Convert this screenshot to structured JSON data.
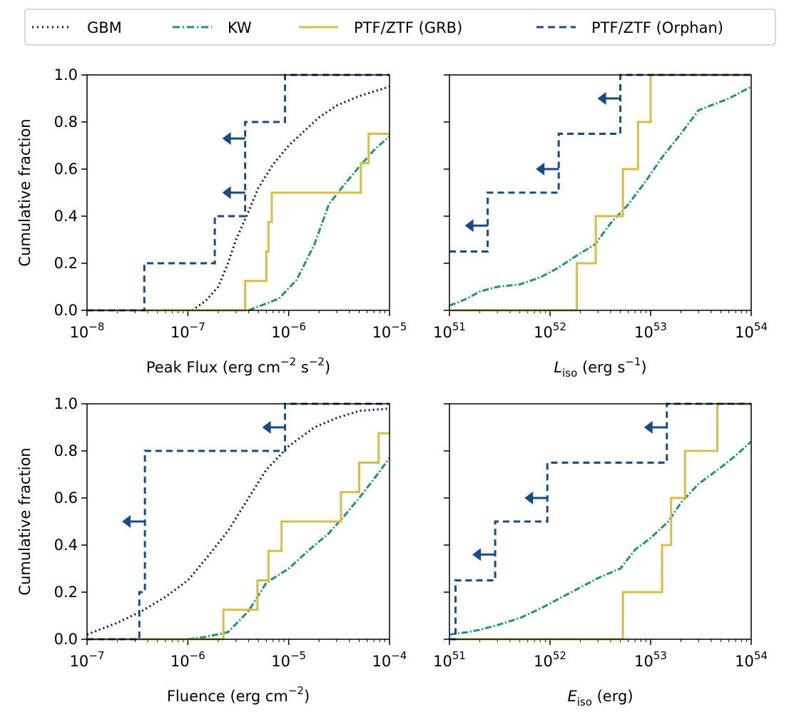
{
  "colors": {
    "gbm": "#1a0a24",
    "kw": "#23936b",
    "grb": "#d6bd46",
    "orphan": "#1a4a85"
  },
  "legend": [
    {
      "key": "gbm",
      "label": "GBM",
      "dash": "dotted"
    },
    {
      "key": "kw",
      "label": "KW",
      "dash": "dashdot"
    },
    {
      "key": "grb",
      "label": "PTF/ZTF (GRB)",
      "dash": "solid"
    },
    {
      "key": "orphan",
      "label": "PTF/ZTF (Orphan)",
      "dash": "dashed"
    }
  ],
  "chart_data": [
    {
      "type": "line",
      "id": "peak-flux",
      "xscale": "log",
      "xlim": [
        1e-08,
        1e-05
      ],
      "ylim": [
        0,
        1
      ],
      "xticks": [
        {
          "base": "10",
          "exp": "−8"
        },
        {
          "base": "10",
          "exp": "−7"
        },
        {
          "base": "10",
          "exp": "−6"
        },
        {
          "base": "10",
          "exp": "−5"
        }
      ],
      "yticks": [
        "0.0",
        "0.2",
        "0.4",
        "0.6",
        "0.8",
        "1.0"
      ],
      "ylabel": "Cumulative fraction",
      "xlabel": {
        "pre": "Peak Flux (erg cm",
        "sup1": "−2",
        "mid": " s",
        "sup2": "−2",
        "post": ")"
      },
      "series": [
        {
          "key": "gbm",
          "type": "smooth",
          "points": [
            [
              1.1e-07,
              0
            ],
            [
              1.5e-07,
              0.04
            ],
            [
              2e-07,
              0.1
            ],
            [
              2.5e-07,
              0.2
            ],
            [
              3e-07,
              0.3
            ],
            [
              4e-07,
              0.42
            ],
            [
              5e-07,
              0.52
            ],
            [
              7e-07,
              0.62
            ],
            [
              1e-06,
              0.7
            ],
            [
              1.5e-06,
              0.77
            ],
            [
              2e-06,
              0.82
            ],
            [
              3e-06,
              0.87
            ],
            [
              5e-06,
              0.91
            ],
            [
              1e-05,
              0.95
            ]
          ]
        },
        {
          "key": "kw",
          "type": "smooth",
          "points": [
            [
              4e-07,
              0
            ],
            [
              8e-07,
              0.05
            ],
            [
              1.2e-06,
              0.13
            ],
            [
              1.8e-06,
              0.28
            ],
            [
              2.5e-06,
              0.45
            ],
            [
              3.5e-06,
              0.53
            ],
            [
              5e-06,
              0.61
            ],
            [
              7e-06,
              0.68
            ],
            [
              1e-05,
              0.74
            ]
          ]
        },
        {
          "key": "grb",
          "type": "step",
          "points": [
            [
              1e-08,
              0
            ],
            [
              3.7e-07,
              0
            ],
            [
              3.7e-07,
              0.125
            ],
            [
              6e-07,
              0.125
            ],
            [
              6e-07,
              0.25
            ],
            [
              6.3e-07,
              0.25
            ],
            [
              6.3e-07,
              0.375
            ],
            [
              6.8e-07,
              0.375
            ],
            [
              6.8e-07,
              0.5
            ],
            [
              5.2e-06,
              0.5
            ],
            [
              5.2e-06,
              0.625
            ],
            [
              6.2e-06,
              0.625
            ],
            [
              6.2e-06,
              0.75
            ],
            [
              1e-05,
              0.75
            ]
          ]
        },
        {
          "key": "orphan",
          "type": "step",
          "points": [
            [
              1e-08,
              0
            ],
            [
              3.7e-08,
              0
            ],
            [
              3.7e-08,
              0.2
            ],
            [
              1.85e-07,
              0.2
            ],
            [
              1.85e-07,
              0.4
            ],
            [
              3.7e-07,
              0.4
            ],
            [
              3.7e-07,
              0.8
            ],
            [
              9.2e-07,
              0.8
            ],
            [
              9.2e-07,
              1.0
            ],
            [
              1e-05,
              1.0
            ]
          ]
        }
      ],
      "arrows": [
        {
          "x": 3.7e-07,
          "y": 0.73
        },
        {
          "x": 3.7e-07,
          "y": 0.5
        }
      ]
    },
    {
      "type": "line",
      "id": "l-iso",
      "xscale": "log",
      "xlim": [
        1e+51,
        1e+54
      ],
      "ylim": [
        0,
        1
      ],
      "xticks": [
        {
          "base": "10",
          "exp": "51"
        },
        {
          "base": "10",
          "exp": "52"
        },
        {
          "base": "10",
          "exp": "53"
        },
        {
          "base": "10",
          "exp": "54"
        }
      ],
      "yticks": [
        "",
        "",
        "",
        "",
        "",
        ""
      ],
      "ylabel": "",
      "xlabel": {
        "italic": "L",
        "sub": "iso",
        "post": " (erg s",
        "sup": "−1",
        "end": ")"
      },
      "series": [
        {
          "key": "kw",
          "type": "smooth",
          "points": [
            [
              1e+51,
              0.02
            ],
            [
              1.5e+51,
              0.05
            ],
            [
              2e+51,
              0.08
            ],
            [
              3e+51,
              0.1
            ],
            [
              5e+51,
              0.11
            ],
            [
              8e+51,
              0.14
            ],
            [
              1.2e+52,
              0.18
            ],
            [
              1.8e+52,
              0.23
            ],
            [
              2.8e+52,
              0.28
            ],
            [
              4e+52,
              0.37
            ],
            [
              6e+52,
              0.45
            ],
            [
              9e+52,
              0.55
            ],
            [
              1.3e+53,
              0.65
            ],
            [
              2e+53,
              0.75
            ],
            [
              3e+53,
              0.85
            ],
            [
              6e+53,
              0.9
            ],
            [
              1e+54,
              0.95
            ]
          ]
        },
        {
          "key": "grb",
          "type": "step",
          "points": [
            [
              1e+51,
              0
            ],
            [
              1.85e+52,
              0
            ],
            [
              1.85e+52,
              0.2
            ],
            [
              2.85e+52,
              0.2
            ],
            [
              2.85e+52,
              0.4
            ],
            [
              5.3e+52,
              0.4
            ],
            [
              5.3e+52,
              0.6
            ],
            [
              7.5e+52,
              0.6
            ],
            [
              7.5e+52,
              0.8
            ],
            [
              1e+53,
              0.8
            ],
            [
              1e+53,
              1.0
            ],
            [
              1e+54,
              1.0
            ]
          ]
        },
        {
          "key": "orphan",
          "type": "step",
          "points": [
            [
              1e+51,
              0.25
            ],
            [
              2.4e+51,
              0.25
            ],
            [
              2.4e+51,
              0.5
            ],
            [
              1.22e+52,
              0.5
            ],
            [
              1.22e+52,
              0.75
            ],
            [
              5e+52,
              0.75
            ],
            [
              5e+52,
              1.0
            ],
            [
              1e+54,
              1.0
            ]
          ]
        }
      ],
      "arrows": [
        {
          "x": 2.4e+51,
          "y": 0.36
        },
        {
          "x": 1.22e+52,
          "y": 0.6
        },
        {
          "x": 5e+52,
          "y": 0.9
        }
      ]
    },
    {
      "type": "line",
      "id": "fluence",
      "xscale": "log",
      "xlim": [
        1e-07,
        0.0001
      ],
      "ylim": [
        0,
        1
      ],
      "xticks": [
        {
          "base": "10",
          "exp": "−7"
        },
        {
          "base": "10",
          "exp": "−6"
        },
        {
          "base": "10",
          "exp": "−5"
        },
        {
          "base": "10",
          "exp": "−4"
        }
      ],
      "yticks": [
        "0.0",
        "0.2",
        "0.4",
        "0.6",
        "0.8",
        "1.0"
      ],
      "ylabel": "Cumulative fraction",
      "xlabel": {
        "pre": "Fluence (erg cm",
        "sup1": "−2",
        "post": ")"
      },
      "series": [
        {
          "key": "gbm",
          "type": "smooth",
          "points": [
            [
              1e-07,
              0.02
            ],
            [
              2e-07,
              0.07
            ],
            [
              3.5e-07,
              0.12
            ],
            [
              6e-07,
              0.18
            ],
            [
              1e-06,
              0.25
            ],
            [
              1.5e-06,
              0.34
            ],
            [
              2.5e-06,
              0.46
            ],
            [
              4e-06,
              0.6
            ],
            [
              6e-06,
              0.72
            ],
            [
              1e-05,
              0.82
            ],
            [
              1.8e-05,
              0.9
            ],
            [
              3e-05,
              0.94
            ],
            [
              5e-05,
              0.97
            ],
            [
              0.0001,
              0.98
            ]
          ]
        },
        {
          "key": "kw",
          "type": "smooth",
          "points": [
            [
              1e-06,
              0
            ],
            [
              1.5e-06,
              0.01
            ],
            [
              2.5e-06,
              0.03
            ],
            [
              4e-06,
              0.12
            ],
            [
              6e-06,
              0.24
            ],
            [
              1e-05,
              0.3
            ],
            [
              1.6e-05,
              0.38
            ],
            [
              2.5e-05,
              0.45
            ],
            [
              3.5e-05,
              0.52
            ],
            [
              5e-05,
              0.6
            ],
            [
              7e-05,
              0.68
            ],
            [
              0.0001,
              0.77
            ]
          ]
        },
        {
          "key": "grb",
          "type": "step",
          "points": [
            [
              1e-07,
              0
            ],
            [
              2.25e-06,
              0
            ],
            [
              2.25e-06,
              0.125
            ],
            [
              4.9e-06,
              0.125
            ],
            [
              4.9e-06,
              0.25
            ],
            [
              6.3e-06,
              0.25
            ],
            [
              6.3e-06,
              0.375
            ],
            [
              8.5e-06,
              0.375
            ],
            [
              8.5e-06,
              0.5
            ],
            [
              3.3e-05,
              0.5
            ],
            [
              3.3e-05,
              0.625
            ],
            [
              5e-05,
              0.625
            ],
            [
              5e-05,
              0.75
            ],
            [
              7.8e-05,
              0.75
            ],
            [
              7.8e-05,
              0.875
            ],
            [
              0.0001,
              0.875
            ]
          ]
        },
        {
          "key": "orphan",
          "type": "step",
          "points": [
            [
              1e-07,
              0
            ],
            [
              3.3e-07,
              0
            ],
            [
              3.3e-07,
              0.2
            ],
            [
              3.75e-07,
              0.2
            ],
            [
              3.75e-07,
              0.8
            ],
            [
              9.2e-06,
              0.8
            ],
            [
              9.2e-06,
              1.0
            ],
            [
              0.0001,
              1.0
            ]
          ]
        }
      ],
      "arrows": [
        {
          "x": 3.75e-07,
          "y": 0.5
        },
        {
          "x": 9.2e-06,
          "y": 0.9
        }
      ]
    },
    {
      "type": "line",
      "id": "e-iso",
      "xscale": "log",
      "xlim": [
        1e+51,
        1e+54
      ],
      "ylim": [
        0,
        1
      ],
      "xticks": [
        {
          "base": "10",
          "exp": "51"
        },
        {
          "base": "10",
          "exp": "52"
        },
        {
          "base": "10",
          "exp": "53"
        },
        {
          "base": "10",
          "exp": "54"
        }
      ],
      "yticks": [
        "",
        "",
        "",
        "",
        "",
        ""
      ],
      "ylabel": "",
      "xlabel": {
        "italic": "E",
        "sub": "iso",
        "post": " (erg)"
      },
      "series": [
        {
          "key": "kw",
          "type": "smooth",
          "points": [
            [
              1e+51,
              0.02
            ],
            [
              1.5e+51,
              0.03
            ],
            [
              2e+51,
              0.04
            ],
            [
              3e+51,
              0.06
            ],
            [
              5e+51,
              0.09
            ],
            [
              8e+51,
              0.13
            ],
            [
              1.2e+52,
              0.17
            ],
            [
              2e+52,
              0.22
            ],
            [
              3e+52,
              0.26
            ],
            [
              5e+52,
              0.3
            ],
            [
              7e+52,
              0.38
            ],
            [
              1e+53,
              0.43
            ],
            [
              1.5e+53,
              0.5
            ],
            [
              2e+53,
              0.58
            ],
            [
              3e+53,
              0.66
            ],
            [
              5e+53,
              0.73
            ],
            [
              7e+53,
              0.78
            ],
            [
              1e+54,
              0.84
            ]
          ]
        },
        {
          "key": "grb",
          "type": "step",
          "points": [
            [
              1e+51,
              0
            ],
            [
              5.3e+52,
              0
            ],
            [
              5.3e+52,
              0.2
            ],
            [
              1.3e+53,
              0.2
            ],
            [
              1.3e+53,
              0.4
            ],
            [
              1.6e+53,
              0.4
            ],
            [
              1.6e+53,
              0.6
            ],
            [
              2.2e+53,
              0.6
            ],
            [
              2.2e+53,
              0.8
            ],
            [
              4.6e+53,
              0.8
            ],
            [
              4.6e+53,
              1.0
            ],
            [
              1e+54,
              1.0
            ]
          ]
        },
        {
          "key": "orphan",
          "type": "step",
          "points": [
            [
              1e+51,
              0
            ],
            [
              1.15e+51,
              0
            ],
            [
              1.15e+51,
              0.25
            ],
            [
              2.85e+51,
              0.25
            ],
            [
              2.85e+51,
              0.5
            ],
            [
              9.4e+51,
              0.5
            ],
            [
              9.4e+51,
              0.75
            ],
            [
              1.45e+53,
              0.75
            ],
            [
              1.45e+53,
              1.0
            ],
            [
              1e+54,
              1.0
            ]
          ]
        }
      ],
      "arrows": [
        {
          "x": 2.85e+51,
          "y": 0.36
        },
        {
          "x": 9.4e+51,
          "y": 0.6
        },
        {
          "x": 1.45e+53,
          "y": 0.9
        }
      ]
    }
  ]
}
